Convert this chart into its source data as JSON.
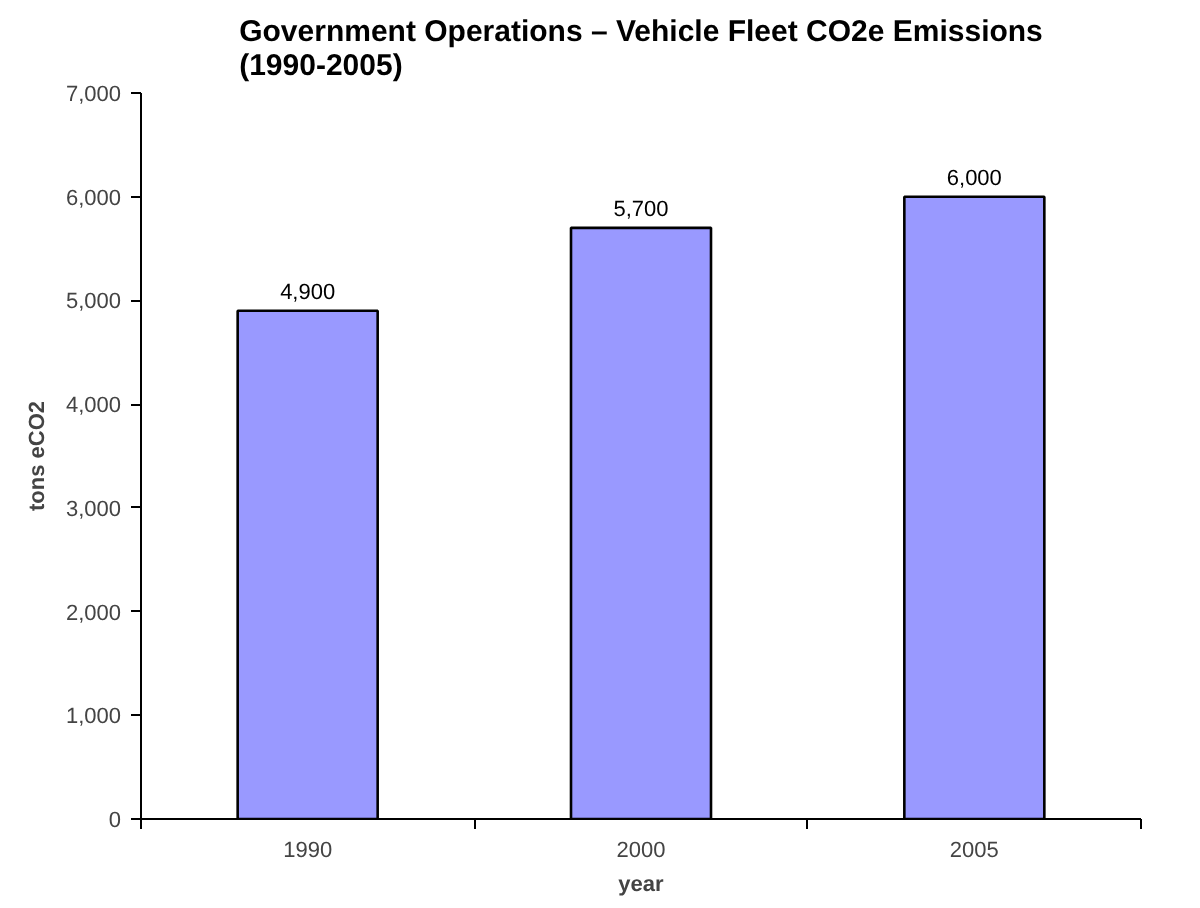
{
  "chart_data": {
    "type": "bar",
    "title": "Government Operations – Vehicle Fleet CO2e Emissions (1990-2005)",
    "xlabel": "year",
    "ylabel": "tons eCO2",
    "categories": [
      "1990",
      "2000",
      "2005"
    ],
    "values": [
      4900,
      5700,
      6000
    ],
    "color": "#9999ff",
    "value_labels": [
      "4,900",
      "5,700",
      "6,000"
    ],
    "ylim": [
      0,
      7000
    ],
    "yticks": [
      0,
      {
        "value": 1000,
        "label": "1,000"
      },
      {
        "value": 2000,
        "label": "2,000"
      },
      {
        "value": 3000,
        "label": "3,000"
      },
      {
        "value": 4000,
        "label": "4,000"
      },
      {
        "value": 5000,
        "label": "5,000"
      },
      {
        "value": 6000,
        "label": "6,000"
      },
      {
        "value": 7000,
        "label": "7,000"
      }
    ],
    "grid": false
  }
}
